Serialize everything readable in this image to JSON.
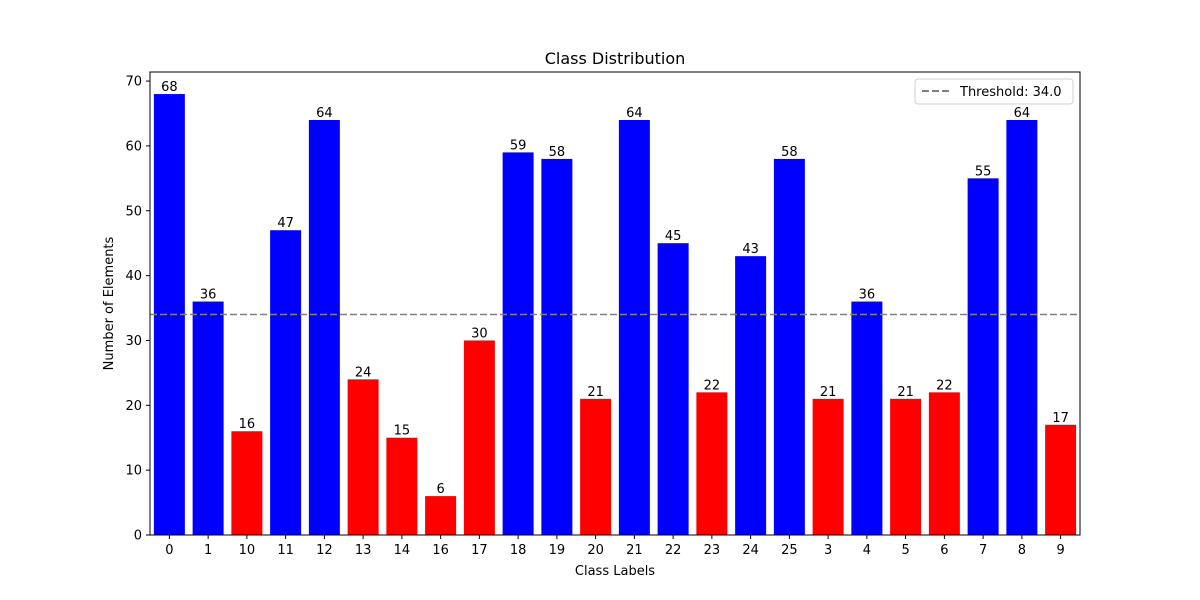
{
  "chart_data": {
    "type": "bar",
    "title": "Class Distribution",
    "xlabel": "Class Labels",
    "ylabel": "Number of Elements",
    "categories": [
      "0",
      "1",
      "10",
      "11",
      "12",
      "13",
      "14",
      "16",
      "17",
      "18",
      "19",
      "20",
      "21",
      "22",
      "23",
      "24",
      "25",
      "3",
      "4",
      "5",
      "6",
      "7",
      "8",
      "9"
    ],
    "values": [
      68,
      36,
      16,
      47,
      64,
      24,
      15,
      6,
      30,
      59,
      58,
      21,
      64,
      45,
      22,
      43,
      58,
      21,
      36,
      21,
      22,
      55,
      64,
      17
    ],
    "ylim": [
      0,
      71.4
    ],
    "yticks": [
      0,
      10,
      20,
      30,
      40,
      50,
      60,
      70
    ],
    "threshold": 34.0,
    "legend": {
      "label": "Threshold: 34.0",
      "location": "upper right"
    },
    "grid": false,
    "colors": {
      "above_threshold": "#0000ff",
      "below_threshold": "#ff0000",
      "threshold_line": "#808080",
      "axes": "#000000"
    }
  }
}
